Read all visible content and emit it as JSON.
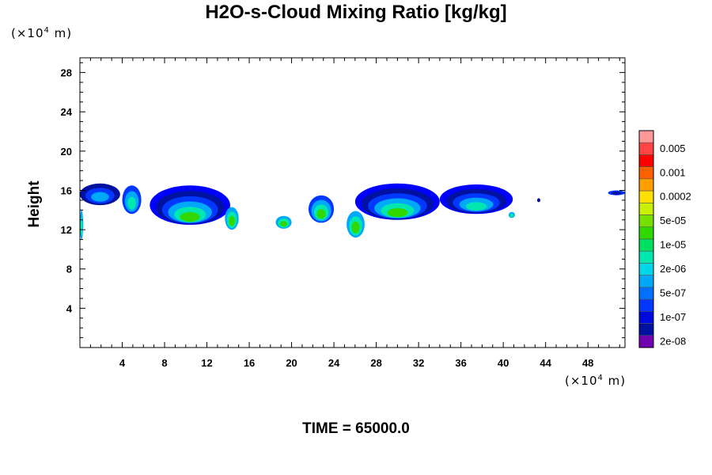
{
  "title": "H2O-s-Cloud Mixing Ratio [kg/kg]",
  "y_unit": {
    "prefix": "(×10",
    "exp": "4",
    "suffix": " m)"
  },
  "x_unit": {
    "prefix": "(×10",
    "exp": "4",
    "suffix": " m)"
  },
  "time_label": "TIME = 65000.0",
  "chart_data": {
    "type": "heatmap",
    "title": "H2O-s-Cloud Mixing Ratio [kg/kg]",
    "ylabel": "Height",
    "xlabel": "",
    "x_unit": "×10^4 m",
    "y_unit": "×10^4 m",
    "xlim": [
      0,
      51.5
    ],
    "ylim": [
      0,
      29.5
    ],
    "x_ticks": [
      "4",
      "8",
      "12",
      "16",
      "20",
      "24",
      "28",
      "32",
      "36",
      "40",
      "44",
      "48"
    ],
    "y_ticks": [
      "4",
      "8",
      "12",
      "16",
      "20",
      "24",
      "28"
    ],
    "colorbar_labels": [
      "0.005",
      "0.001",
      "0.0002",
      "5e-05",
      "1e-05",
      "2e-06",
      "5e-07",
      "1e-07",
      "2e-08"
    ],
    "colorbar_colors": [
      "#ff9999",
      "#ff4444",
      "#ff0000",
      "#ff6000",
      "#ffa000",
      "#ffe000",
      "#c8f000",
      "#78e000",
      "#30d800",
      "#00e060",
      "#00e8b0",
      "#00d8e8",
      "#00a8f8",
      "#0070ff",
      "#0038ff",
      "#0008e0",
      "#0010a0",
      "#7000b0"
    ],
    "cloud_patches": [
      {
        "x": [
          0,
          3.8
        ],
        "y": [
          14.5,
          16.7
        ],
        "levels": [
          "1e-07",
          "5e-07",
          "2e-06"
        ]
      },
      {
        "x": [
          0,
          0.3
        ],
        "y": [
          11.0,
          14.0
        ],
        "levels": [
          "2e-06",
          "1e-05"
        ]
      },
      {
        "x": [
          4.0,
          5.8
        ],
        "y": [
          13.6,
          16.5
        ],
        "levels": [
          "5e-07",
          "2e-06",
          "1e-05"
        ]
      },
      {
        "x": [
          6.6,
          14.2
        ],
        "y": [
          12.5,
          16.5
        ],
        "levels": [
          "2e-08",
          "1e-07",
          "5e-07",
          "2e-06",
          "1e-05",
          "5e-05"
        ]
      },
      {
        "x": [
          13.7,
          15.0
        ],
        "y": [
          12.0,
          14.3
        ],
        "levels": [
          "2e-06",
          "1e-05",
          "5e-05"
        ]
      },
      {
        "x": [
          18.5,
          20.0
        ],
        "y": [
          12.1,
          13.4
        ],
        "levels": [
          "2e-06",
          "1e-05",
          "5e-05"
        ]
      },
      {
        "x": [
          21.6,
          24.0
        ],
        "y": [
          12.7,
          15.5
        ],
        "levels": [
          "5e-07",
          "2e-06",
          "1e-05",
          "5e-05"
        ]
      },
      {
        "x": [
          25.2,
          26.9
        ],
        "y": [
          11.2,
          13.9
        ],
        "levels": [
          "2e-06",
          "1e-05",
          "5e-05"
        ]
      },
      {
        "x": [
          26.0,
          34.0
        ],
        "y": [
          13.0,
          16.7
        ],
        "levels": [
          "2e-08",
          "1e-07",
          "5e-07",
          "2e-06",
          "1e-05",
          "5e-05"
        ]
      },
      {
        "x": [
          34.0,
          40.9
        ],
        "y": [
          13.6,
          16.6
        ],
        "levels": [
          "2e-08",
          "1e-07",
          "5e-07",
          "2e-06",
          "1e-05"
        ]
      },
      {
        "x": [
          40.5,
          41.1
        ],
        "y": [
          13.2,
          13.8
        ],
        "levels": [
          "2e-06",
          "1e-05"
        ]
      },
      {
        "x": [
          43.2,
          43.5
        ],
        "y": [
          14.8,
          15.2
        ],
        "levels": [
          "1e-07"
        ]
      },
      {
        "x": [
          49.9,
          51.5
        ],
        "y": [
          15.5,
          16.0
        ],
        "levels": [
          "5e-07",
          "1e-07"
        ]
      }
    ]
  }
}
